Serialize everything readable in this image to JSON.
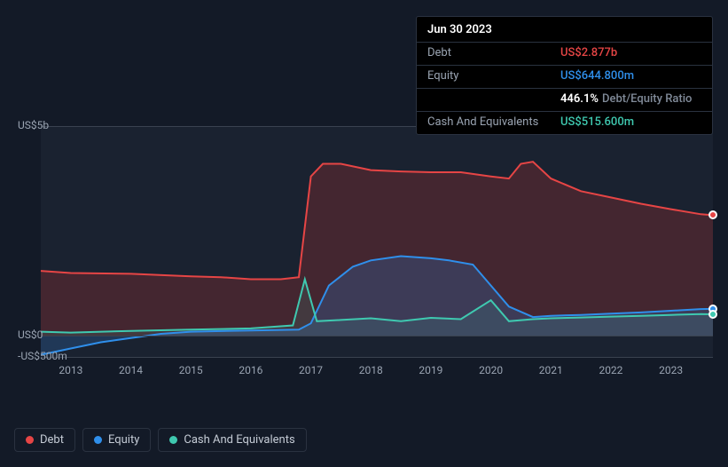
{
  "tooltip": {
    "date": "Jun 30 2023",
    "rows": {
      "debt": {
        "label": "Debt",
        "value": "US$2.877b"
      },
      "equity": {
        "label": "Equity",
        "value": "US$644.800m"
      },
      "ratio": {
        "pct": "446.1%",
        "text": "Debt/Equity Ratio"
      },
      "cash": {
        "label": "Cash And Equivalents",
        "value": "US$515.600m"
      }
    }
  },
  "chart": {
    "type": "area-line",
    "background_color": "#1a2230",
    "grid_color": "#3a4250",
    "y_axis": {
      "min": -500,
      "max": 5000,
      "unit": "US$m",
      "ticks": [
        {
          "v": 5000,
          "label": "US$5b"
        },
        {
          "v": 0,
          "label": "US$0"
        },
        {
          "v": -500,
          "label": "-US$500m"
        }
      ]
    },
    "x_axis": {
      "years": [
        2013,
        2014,
        2015,
        2016,
        2017,
        2018,
        2019,
        2020,
        2021,
        2022,
        2023
      ],
      "min": 2012.5,
      "max": 2023.7
    },
    "series": {
      "debt": {
        "label": "Debt",
        "color": "#e64545",
        "fill": "rgba(166,50,50,0.30)",
        "line_width": 2,
        "points": [
          [
            2012.5,
            1550
          ],
          [
            2013,
            1500
          ],
          [
            2014,
            1480
          ],
          [
            2015,
            1420
          ],
          [
            2015.5,
            1400
          ],
          [
            2016,
            1350
          ],
          [
            2016.5,
            1350
          ],
          [
            2016.8,
            1400
          ],
          [
            2017,
            3800
          ],
          [
            2017.2,
            4100
          ],
          [
            2017.5,
            4100
          ],
          [
            2018,
            3950
          ],
          [
            2018.5,
            3920
          ],
          [
            2019,
            3900
          ],
          [
            2019.5,
            3900
          ],
          [
            2020,
            3800
          ],
          [
            2020.3,
            3750
          ],
          [
            2020.5,
            4100
          ],
          [
            2020.7,
            4150
          ],
          [
            2021,
            3750
          ],
          [
            2021.5,
            3450
          ],
          [
            2022,
            3300
          ],
          [
            2022.5,
            3150
          ],
          [
            2023,
            3020
          ],
          [
            2023.5,
            2900
          ],
          [
            2023.7,
            2877
          ]
        ]
      },
      "equity": {
        "label": "Equity",
        "color": "#2f8feb",
        "fill": "rgba(47,110,180,0.30)",
        "line_width": 2,
        "points": [
          [
            2012.5,
            -450
          ],
          [
            2013,
            -300
          ],
          [
            2013.5,
            -150
          ],
          [
            2014,
            -50
          ],
          [
            2014.5,
            50
          ],
          [
            2015,
            100
          ],
          [
            2016,
            130
          ],
          [
            2016.8,
            150
          ],
          [
            2017,
            300
          ],
          [
            2017.3,
            1200
          ],
          [
            2017.7,
            1650
          ],
          [
            2018,
            1800
          ],
          [
            2018.5,
            1900
          ],
          [
            2019,
            1850
          ],
          [
            2019.3,
            1800
          ],
          [
            2019.7,
            1700
          ],
          [
            2020,
            1200
          ],
          [
            2020.3,
            700
          ],
          [
            2020.7,
            450
          ],
          [
            2021,
            480
          ],
          [
            2021.5,
            500
          ],
          [
            2022,
            530
          ],
          [
            2022.5,
            560
          ],
          [
            2023,
            600
          ],
          [
            2023.5,
            640
          ],
          [
            2023.7,
            644
          ]
        ]
      },
      "cash": {
        "label": "Cash And Equivalents",
        "color": "#3fc9b0",
        "fill": "rgba(63,201,176,0.12)",
        "line_width": 2,
        "points": [
          [
            2012.5,
            100
          ],
          [
            2013,
            80
          ],
          [
            2014,
            120
          ],
          [
            2015,
            150
          ],
          [
            2016,
            180
          ],
          [
            2016.7,
            250
          ],
          [
            2016.9,
            1350
          ],
          [
            2017.1,
            350
          ],
          [
            2017.5,
            380
          ],
          [
            2018,
            420
          ],
          [
            2018.5,
            350
          ],
          [
            2019,
            430
          ],
          [
            2019.5,
            400
          ],
          [
            2020,
            850
          ],
          [
            2020.3,
            350
          ],
          [
            2020.7,
            400
          ],
          [
            2021,
            420
          ],
          [
            2021.5,
            440
          ],
          [
            2022,
            460
          ],
          [
            2022.5,
            480
          ],
          [
            2023,
            500
          ],
          [
            2023.5,
            520
          ],
          [
            2023.7,
            516
          ]
        ]
      }
    },
    "hover_x": 2023.7
  },
  "legend": {
    "items": [
      {
        "key": "debt",
        "label": "Debt",
        "color": "#e64545"
      },
      {
        "key": "equity",
        "label": "Equity",
        "color": "#2f8feb"
      },
      {
        "key": "cash",
        "label": "Cash And Equivalents",
        "color": "#3fc9b0"
      }
    ]
  }
}
